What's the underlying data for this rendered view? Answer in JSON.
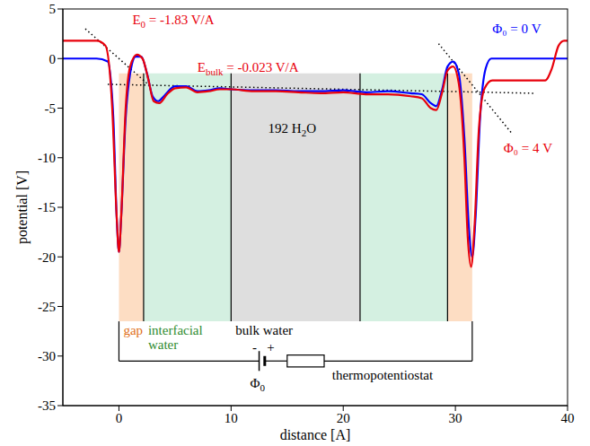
{
  "chart_data": {
    "type": "line",
    "x_label": "distance [A]",
    "y_label": "potential [V]",
    "xlim": [
      -5,
      40
    ],
    "xticks": [
      0,
      10,
      20,
      30,
      40
    ],
    "ylim": [
      -35,
      5
    ],
    "yticks": [
      -35,
      -30,
      -25,
      -20,
      -15,
      -10,
      -5,
      0,
      5
    ],
    "grid": false,
    "series": [
      {
        "name": "Φ₀ = 0 V",
        "color": "#0000ff",
        "x": [
          -5,
          -2,
          -1,
          -0.5,
          -0.2,
          0,
          0.2,
          0.6,
          1,
          1.5,
          2,
          2.5,
          3,
          3.5,
          4,
          5,
          6,
          7,
          8,
          9,
          10,
          12,
          14,
          16,
          18,
          20,
          22,
          24,
          26,
          27,
          27.8,
          28.3,
          28.8,
          29.3,
          29.8,
          30.3,
          30.8,
          31.2,
          31.5,
          31.8,
          32.2,
          32.7,
          33.2,
          35,
          40
        ],
        "values": [
          0,
          0,
          -0.3,
          -6,
          -16,
          -19.5,
          -16,
          -6,
          -1.5,
          0.2,
          0.2,
          -1.5,
          -3.8,
          -4.3,
          -3.8,
          -2.8,
          -2.8,
          -3.3,
          -3.2,
          -3,
          -3.1,
          -3.2,
          -3.2,
          -3.3,
          -3.3,
          -3.2,
          -3.4,
          -3.3,
          -3.5,
          -3.6,
          -4.5,
          -4.8,
          -3.2,
          -0.8,
          -0.3,
          -1.5,
          -8,
          -17,
          -20,
          -16,
          -6,
          -1,
          0,
          0,
          0
        ]
      },
      {
        "name": "Φ₀ = 4 V",
        "color": "#e8000b",
        "x": [
          -5,
          -2,
          -1.2,
          -0.6,
          -0.2,
          0,
          0.2,
          0.6,
          1,
          1.6,
          2.1,
          2.6,
          3.1,
          3.6,
          4.3,
          5,
          6,
          7,
          8,
          9,
          10,
          12,
          14,
          16,
          18,
          20,
          22,
          24,
          26,
          27,
          27.8,
          28.3,
          28.8,
          29.3,
          29.8,
          30.3,
          30.8,
          31.1,
          31.4,
          31.7,
          32.1,
          32.6,
          33.3,
          36,
          38,
          38.6,
          39.2,
          39.7,
          40
        ],
        "values": [
          1.8,
          1.8,
          1.3,
          -5,
          -16,
          -19.5,
          -16,
          -5,
          -0.8,
          0.4,
          0,
          -2,
          -4.3,
          -4.5,
          -3.6,
          -3,
          -2.9,
          -3.4,
          -3.3,
          -3.1,
          -3.1,
          -3.3,
          -3.3,
          -3.4,
          -3.5,
          -3.4,
          -3.6,
          -3.6,
          -3.8,
          -4,
          -5,
          -5.2,
          -3.5,
          -1.2,
          -0.8,
          -2.5,
          -10,
          -18,
          -21,
          -17,
          -7,
          -3,
          -2.2,
          -2.2,
          -2.2,
          -1,
          1.3,
          1.8,
          1.8
        ]
      }
    ],
    "guides": [
      {
        "x": [
          -3,
          2.5
        ],
        "y": [
          3,
          -2.5
        ],
        "line_style": "dotted"
      },
      {
        "x": [
          -1,
          37
        ],
        "y": [
          -2.6,
          -3.5
        ],
        "line_style": "dotted"
      },
      {
        "x": [
          28.5,
          35
        ],
        "y": [
          1.5,
          -7.5
        ],
        "line_style": "dotted"
      }
    ],
    "regions": [
      {
        "label": "gap",
        "color": "#fdd5b4",
        "label_color": "#e07020",
        "x": [
          0,
          2.2
        ],
        "y": [
          -26.5,
          -1.5
        ]
      },
      {
        "label": "interfacial water",
        "color": "#c9ecd9",
        "label_color": "#2e8b2e",
        "x": [
          2.2,
          10
        ],
        "y": [
          -26.5,
          -1.5
        ]
      },
      {
        "label": "bulk water",
        "color": "#d6d6d6",
        "label_color": "#000000",
        "x": [
          10,
          21.5
        ],
        "y": [
          -26.5,
          -1.5
        ]
      },
      {
        "color": "#c9ecd9",
        "x": [
          21.5,
          29.3
        ],
        "y": [
          -26.5,
          -1.5
        ]
      },
      {
        "color": "#fdd5b4",
        "x": [
          29.3,
          31.5
        ],
        "y": [
          -26.5,
          -1.5
        ]
      }
    ],
    "annotations": [
      {
        "text": "E",
        "sub": "0",
        "rest": " = -1.83 V/A",
        "color": "#e8000b"
      },
      {
        "text": "E",
        "sub": "bulk",
        "rest": " = -0.023 V/A",
        "color": "#e8000b"
      },
      {
        "text": "192 H",
        "sub": "2",
        "rest": "O",
        "color": "#000000"
      },
      {
        "text": "-",
        "color": "#000000"
      },
      {
        "text": "+",
        "color": "#000000"
      },
      {
        "text": "Φ",
        "sub": "0",
        "color": "#000000"
      },
      {
        "text": "thermopotentiostat",
        "color": "#000000"
      }
    ]
  }
}
